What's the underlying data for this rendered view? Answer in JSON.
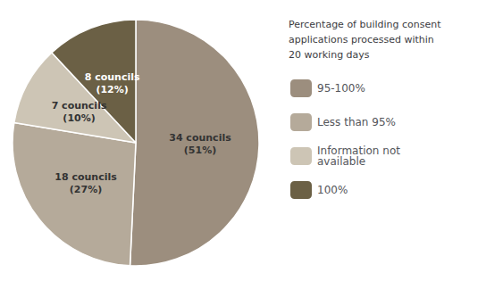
{
  "chart_data": {
    "type": "pie",
    "title": "Percentage of building consent\napplications processed within\n20 working days",
    "categories": [
      "95-100%",
      "Less than 95%",
      "Information not\navailable",
      "100%"
    ],
    "values": [
      34,
      18,
      7,
      8
    ],
    "value_labels": [
      "34 councils\n(51%)",
      "18 councils\n(27%)",
      "7 councils\n(10%)",
      "8 councils\n(12%)"
    ],
    "colors": [
      "#9c8e7e",
      "#b5aa9a",
      "#cdc5b5",
      "#6b6045"
    ],
    "data_labels": true,
    "legend": "right"
  }
}
